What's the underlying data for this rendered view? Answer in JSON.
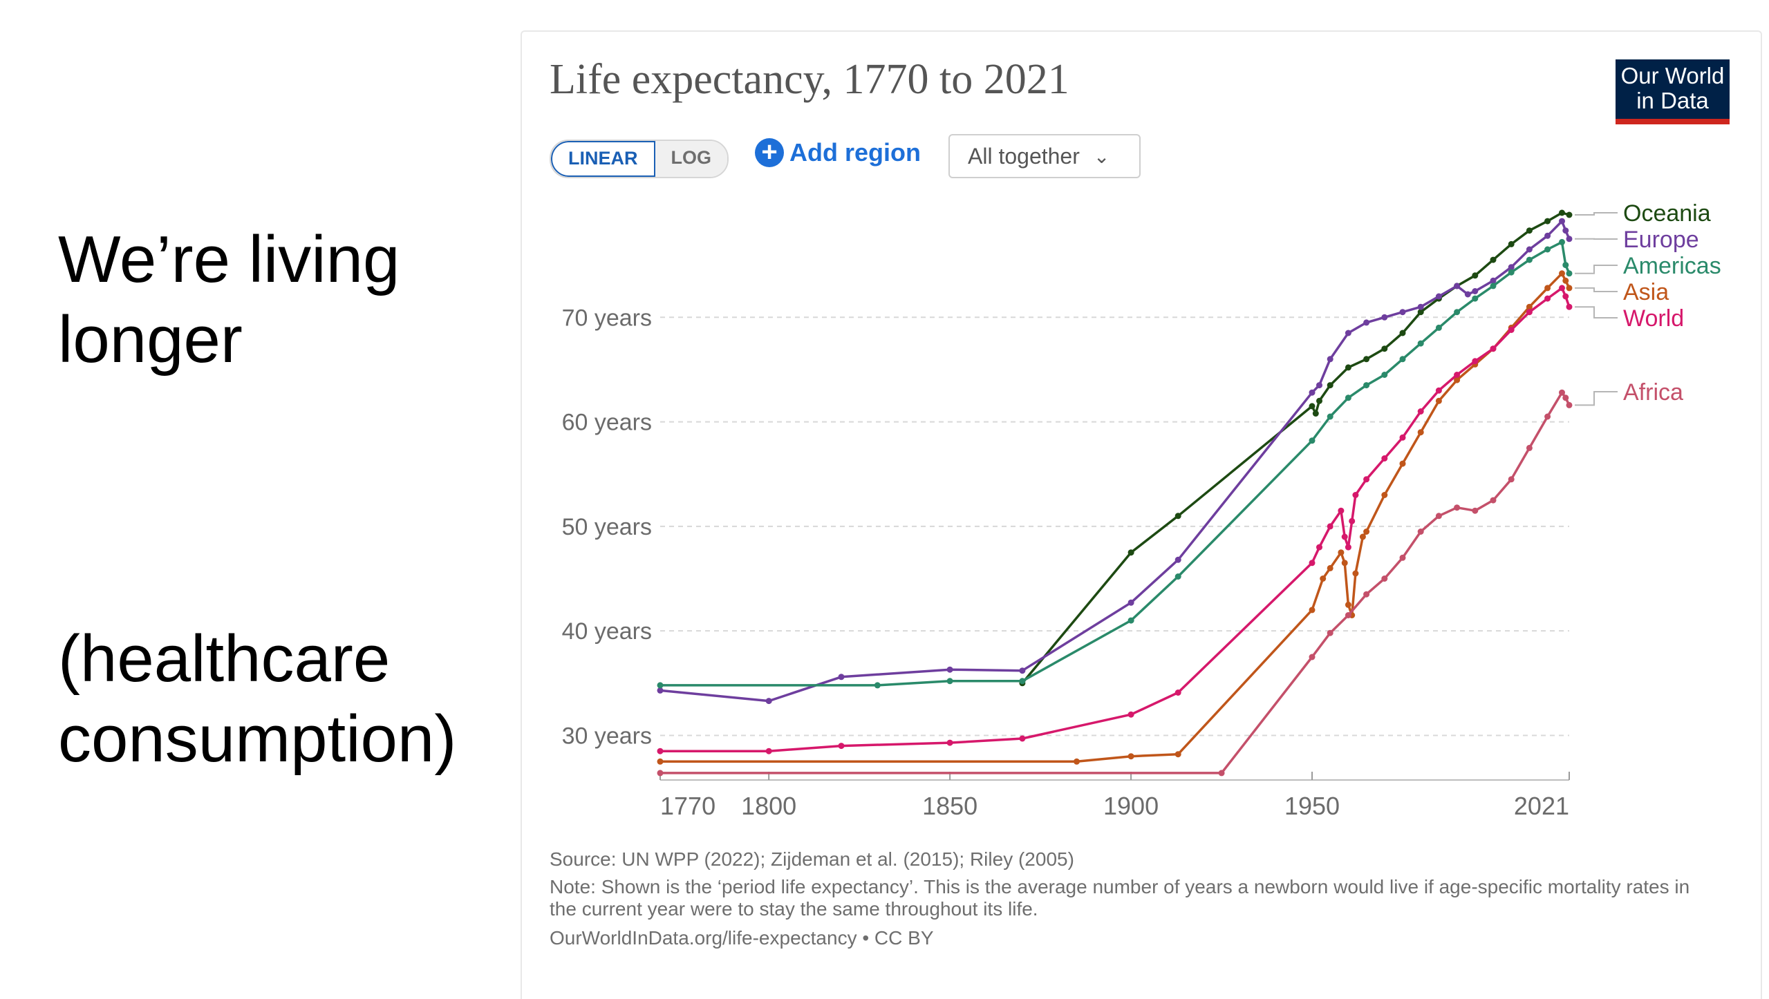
{
  "slide": {
    "heading": "We’re living longer",
    "subheading": "(healthcare consumption)"
  },
  "panel": {
    "title": "Life expectancy, 1770 to 2021",
    "logo_text": "Our World in Data",
    "toggle": {
      "linear": "LINEAR",
      "log": "LOG",
      "selected": "LINEAR"
    },
    "add_region": "Add region",
    "dropdown_value": "All together",
    "source": "Source: UN WPP (2022); Zijdeman et al. (2015); Riley (2005)",
    "note": "Note: Shown is the ‘period life expectancy’. This is the average number of years a newborn would live if age-specific mortality rates in the current year were to stay the same throughout its life.",
    "credit": "OurWorldInData.org/life-expectancy • CC BY"
  },
  "colors": {
    "Oceania": "#1d4a12",
    "Europe": "#6e3e9e",
    "Americas": "#2a8a6a",
    "Asia": "#c0561a",
    "World": "#d6186b",
    "Africa": "#c4506a",
    "accent": "#1d6fd8"
  },
  "chart_data": {
    "type": "line",
    "title": "Life expectancy, 1770 to 2021",
    "xlim": [
      1770,
      2021
    ],
    "ylim": [
      26,
      80
    ],
    "x_ticks": [
      1770,
      1800,
      1850,
      1900,
      1950,
      2021
    ],
    "y_ticks": [
      {
        "value": 30,
        "label": "30 years"
      },
      {
        "value": 40,
        "label": "40 years"
      },
      {
        "value": 50,
        "label": "50 years"
      },
      {
        "value": 60,
        "label": "60 years"
      },
      {
        "value": 70,
        "label": "70 years"
      }
    ],
    "grid": true,
    "legend": "right (end-of-line labels)",
    "series": [
      {
        "name": "Oceania",
        "points": [
          [
            1870,
            35.0
          ],
          [
            1900,
            47.5
          ],
          [
            1913,
            51.0
          ],
          [
            1950,
            61.5
          ],
          [
            1951,
            60.8
          ],
          [
            1952,
            62.0
          ],
          [
            1955,
            63.5
          ],
          [
            1960,
            65.2
          ],
          [
            1965,
            66.0
          ],
          [
            1970,
            67.0
          ],
          [
            1975,
            68.5
          ],
          [
            1980,
            70.5
          ],
          [
            1985,
            71.8
          ],
          [
            1990,
            73.0
          ],
          [
            1995,
            74.0
          ],
          [
            2000,
            75.5
          ],
          [
            2005,
            77.0
          ],
          [
            2010,
            78.3
          ],
          [
            2015,
            79.2
          ],
          [
            2019,
            80.0
          ],
          [
            2021,
            79.8
          ]
        ]
      },
      {
        "name": "Europe",
        "points": [
          [
            1770,
            34.3
          ],
          [
            1800,
            33.3
          ],
          [
            1820,
            35.6
          ],
          [
            1850,
            36.3
          ],
          [
            1870,
            36.2
          ],
          [
            1900,
            42.7
          ],
          [
            1913,
            46.8
          ],
          [
            1950,
            62.8
          ],
          [
            1952,
            63.5
          ],
          [
            1955,
            66.0
          ],
          [
            1960,
            68.5
          ],
          [
            1965,
            69.5
          ],
          [
            1970,
            70.0
          ],
          [
            1975,
            70.5
          ],
          [
            1980,
            71.0
          ],
          [
            1985,
            72.0
          ],
          [
            1990,
            73.0
          ],
          [
            1993,
            72.2
          ],
          [
            1995,
            72.5
          ],
          [
            2000,
            73.5
          ],
          [
            2005,
            74.8
          ],
          [
            2010,
            76.5
          ],
          [
            2015,
            77.8
          ],
          [
            2019,
            79.2
          ],
          [
            2020,
            78.3
          ],
          [
            2021,
            77.5
          ]
        ]
      },
      {
        "name": "Americas",
        "points": [
          [
            1770,
            34.8
          ],
          [
            1830,
            34.8
          ],
          [
            1850,
            35.2
          ],
          [
            1870,
            35.2
          ],
          [
            1900,
            41.0
          ],
          [
            1913,
            45.2
          ],
          [
            1950,
            58.2
          ],
          [
            1955,
            60.5
          ],
          [
            1960,
            62.3
          ],
          [
            1965,
            63.5
          ],
          [
            1970,
            64.5
          ],
          [
            1975,
            66.0
          ],
          [
            1980,
            67.5
          ],
          [
            1985,
            69.0
          ],
          [
            1990,
            70.5
          ],
          [
            1995,
            71.8
          ],
          [
            2000,
            73.0
          ],
          [
            2005,
            74.3
          ],
          [
            2010,
            75.5
          ],
          [
            2015,
            76.5
          ],
          [
            2019,
            77.2
          ],
          [
            2020,
            75.0
          ],
          [
            2021,
            74.2
          ]
        ]
      },
      {
        "name": "Asia",
        "points": [
          [
            1770,
            27.5
          ],
          [
            1885,
            27.5
          ],
          [
            1900,
            28.0
          ],
          [
            1913,
            28.2
          ],
          [
            1950,
            42.0
          ],
          [
            1953,
            45.0
          ],
          [
            1955,
            46.0
          ],
          [
            1958,
            47.5
          ],
          [
            1959,
            46.5
          ],
          [
            1960,
            42.5
          ],
          [
            1961,
            41.5
          ],
          [
            1962,
            45.5
          ],
          [
            1964,
            49.0
          ],
          [
            1965,
            49.5
          ],
          [
            1970,
            53.0
          ],
          [
            1975,
            56.0
          ],
          [
            1980,
            59.0
          ],
          [
            1985,
            62.0
          ],
          [
            1990,
            64.0
          ],
          [
            1995,
            65.5
          ],
          [
            2000,
            67.0
          ],
          [
            2005,
            69.0
          ],
          [
            2010,
            71.0
          ],
          [
            2015,
            72.8
          ],
          [
            2019,
            74.2
          ],
          [
            2020,
            73.5
          ],
          [
            2021,
            72.8
          ]
        ]
      },
      {
        "name": "World",
        "points": [
          [
            1770,
            28.5
          ],
          [
            1800,
            28.5
          ],
          [
            1820,
            29.0
          ],
          [
            1850,
            29.3
          ],
          [
            1870,
            29.7
          ],
          [
            1900,
            32.0
          ],
          [
            1913,
            34.1
          ],
          [
            1950,
            46.5
          ],
          [
            1952,
            48.0
          ],
          [
            1955,
            50.0
          ],
          [
            1958,
            51.5
          ],
          [
            1959,
            49.0
          ],
          [
            1960,
            48.0
          ],
          [
            1961,
            50.5
          ],
          [
            1962,
            53.0
          ],
          [
            1965,
            54.5
          ],
          [
            1970,
            56.5
          ],
          [
            1975,
            58.5
          ],
          [
            1980,
            61.0
          ],
          [
            1985,
            63.0
          ],
          [
            1990,
            64.5
          ],
          [
            1995,
            65.8
          ],
          [
            2000,
            67.0
          ],
          [
            2005,
            68.8
          ],
          [
            2010,
            70.5
          ],
          [
            2015,
            71.8
          ],
          [
            2019,
            72.8
          ],
          [
            2020,
            72.0
          ],
          [
            2021,
            71.0
          ]
        ]
      },
      {
        "name": "Africa",
        "points": [
          [
            1770,
            26.4
          ],
          [
            1925,
            26.4
          ],
          [
            1950,
            37.5
          ],
          [
            1955,
            39.8
          ],
          [
            1960,
            41.5
          ],
          [
            1965,
            43.5
          ],
          [
            1970,
            45.0
          ],
          [
            1975,
            47.0
          ],
          [
            1980,
            49.5
          ],
          [
            1985,
            51.0
          ],
          [
            1990,
            51.8
          ],
          [
            1995,
            51.5
          ],
          [
            2000,
            52.5
          ],
          [
            2005,
            54.5
          ],
          [
            2010,
            57.5
          ],
          [
            2015,
            60.5
          ],
          [
            2019,
            62.8
          ],
          [
            2020,
            62.3
          ],
          [
            2021,
            61.6
          ]
        ]
      }
    ]
  }
}
